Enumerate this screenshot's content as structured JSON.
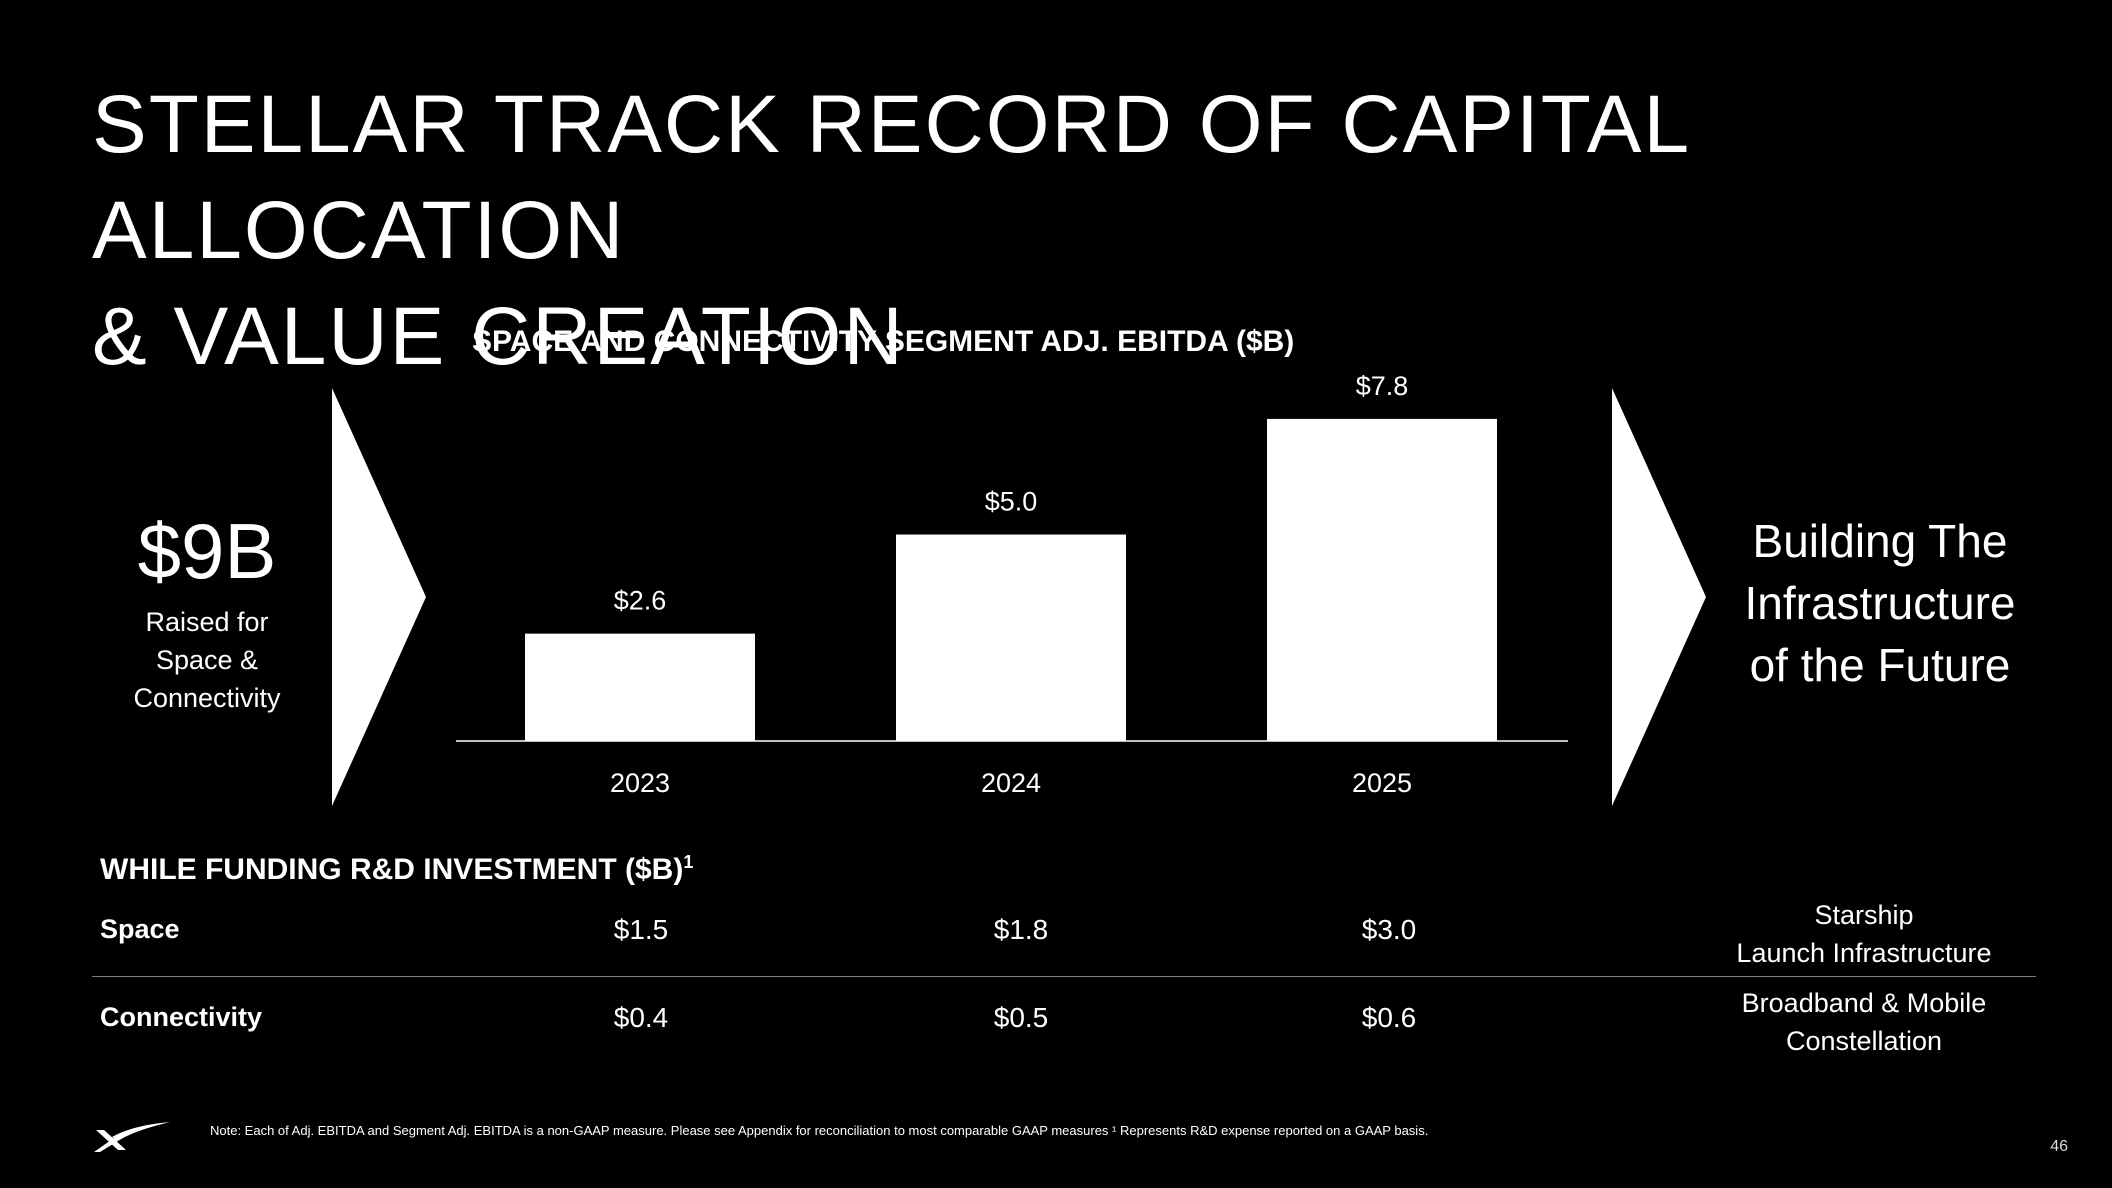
{
  "slide": {
    "title_line1": "STELLAR TRACK RECORD OF CAPITAL ALLOCATION",
    "title_line2": "& VALUE CREATION",
    "page_number": "46",
    "footnote": "Note: Each of Adj. EBITDA and Segment Adj. EBITDA is a non-GAAP measure. Please see Appendix for reconciliation to most comparable GAAP measures ¹ Represents R&D expense reported on a GAAP basis."
  },
  "left_stat": {
    "value": "$9B",
    "caption": "Raised for Space & Connectivity"
  },
  "right_stat": {
    "line1": "Building The",
    "line2": "Infrastructure",
    "line3": "of the Future"
  },
  "chart_data": {
    "type": "bar",
    "title": "SPACE AND CONNECTIVITY SEGMENT ADJ. EBITDA ($B)",
    "categories": [
      "2023",
      "2024",
      "2025"
    ],
    "values": [
      2.6,
      5.0,
      7.8
    ],
    "data_labels": [
      "$2.6",
      "$5.0",
      "$7.8"
    ],
    "xlabel": "",
    "ylabel": "",
    "ylim": [
      0,
      8.5
    ],
    "grid": false,
    "bar_color": "#ffffff",
    "axis_color": "#bfbfbf"
  },
  "rd_table": {
    "title": "WHILE FUNDING R&D INVESTMENT ($B)",
    "title_superscript": "1",
    "rows": [
      {
        "label": "Space",
        "values": [
          "$1.5",
          "$1.8",
          "$3.0"
        ],
        "desc_line1": "Starship",
        "desc_line2": "Launch Infrastructure"
      },
      {
        "label": "Connectivity",
        "values": [
          "$0.4",
          "$0.5",
          "$0.6"
        ],
        "desc_line1": "Broadband & Mobile",
        "desc_line2": "Constellation"
      }
    ]
  },
  "colors": {
    "background": "#000000",
    "foreground": "#ffffff",
    "divider": "#7f7f7f"
  },
  "icons": {
    "brand_logo": "x-swoosh-logo-icon",
    "flow_arrows": "chevron-arrow-icon"
  }
}
